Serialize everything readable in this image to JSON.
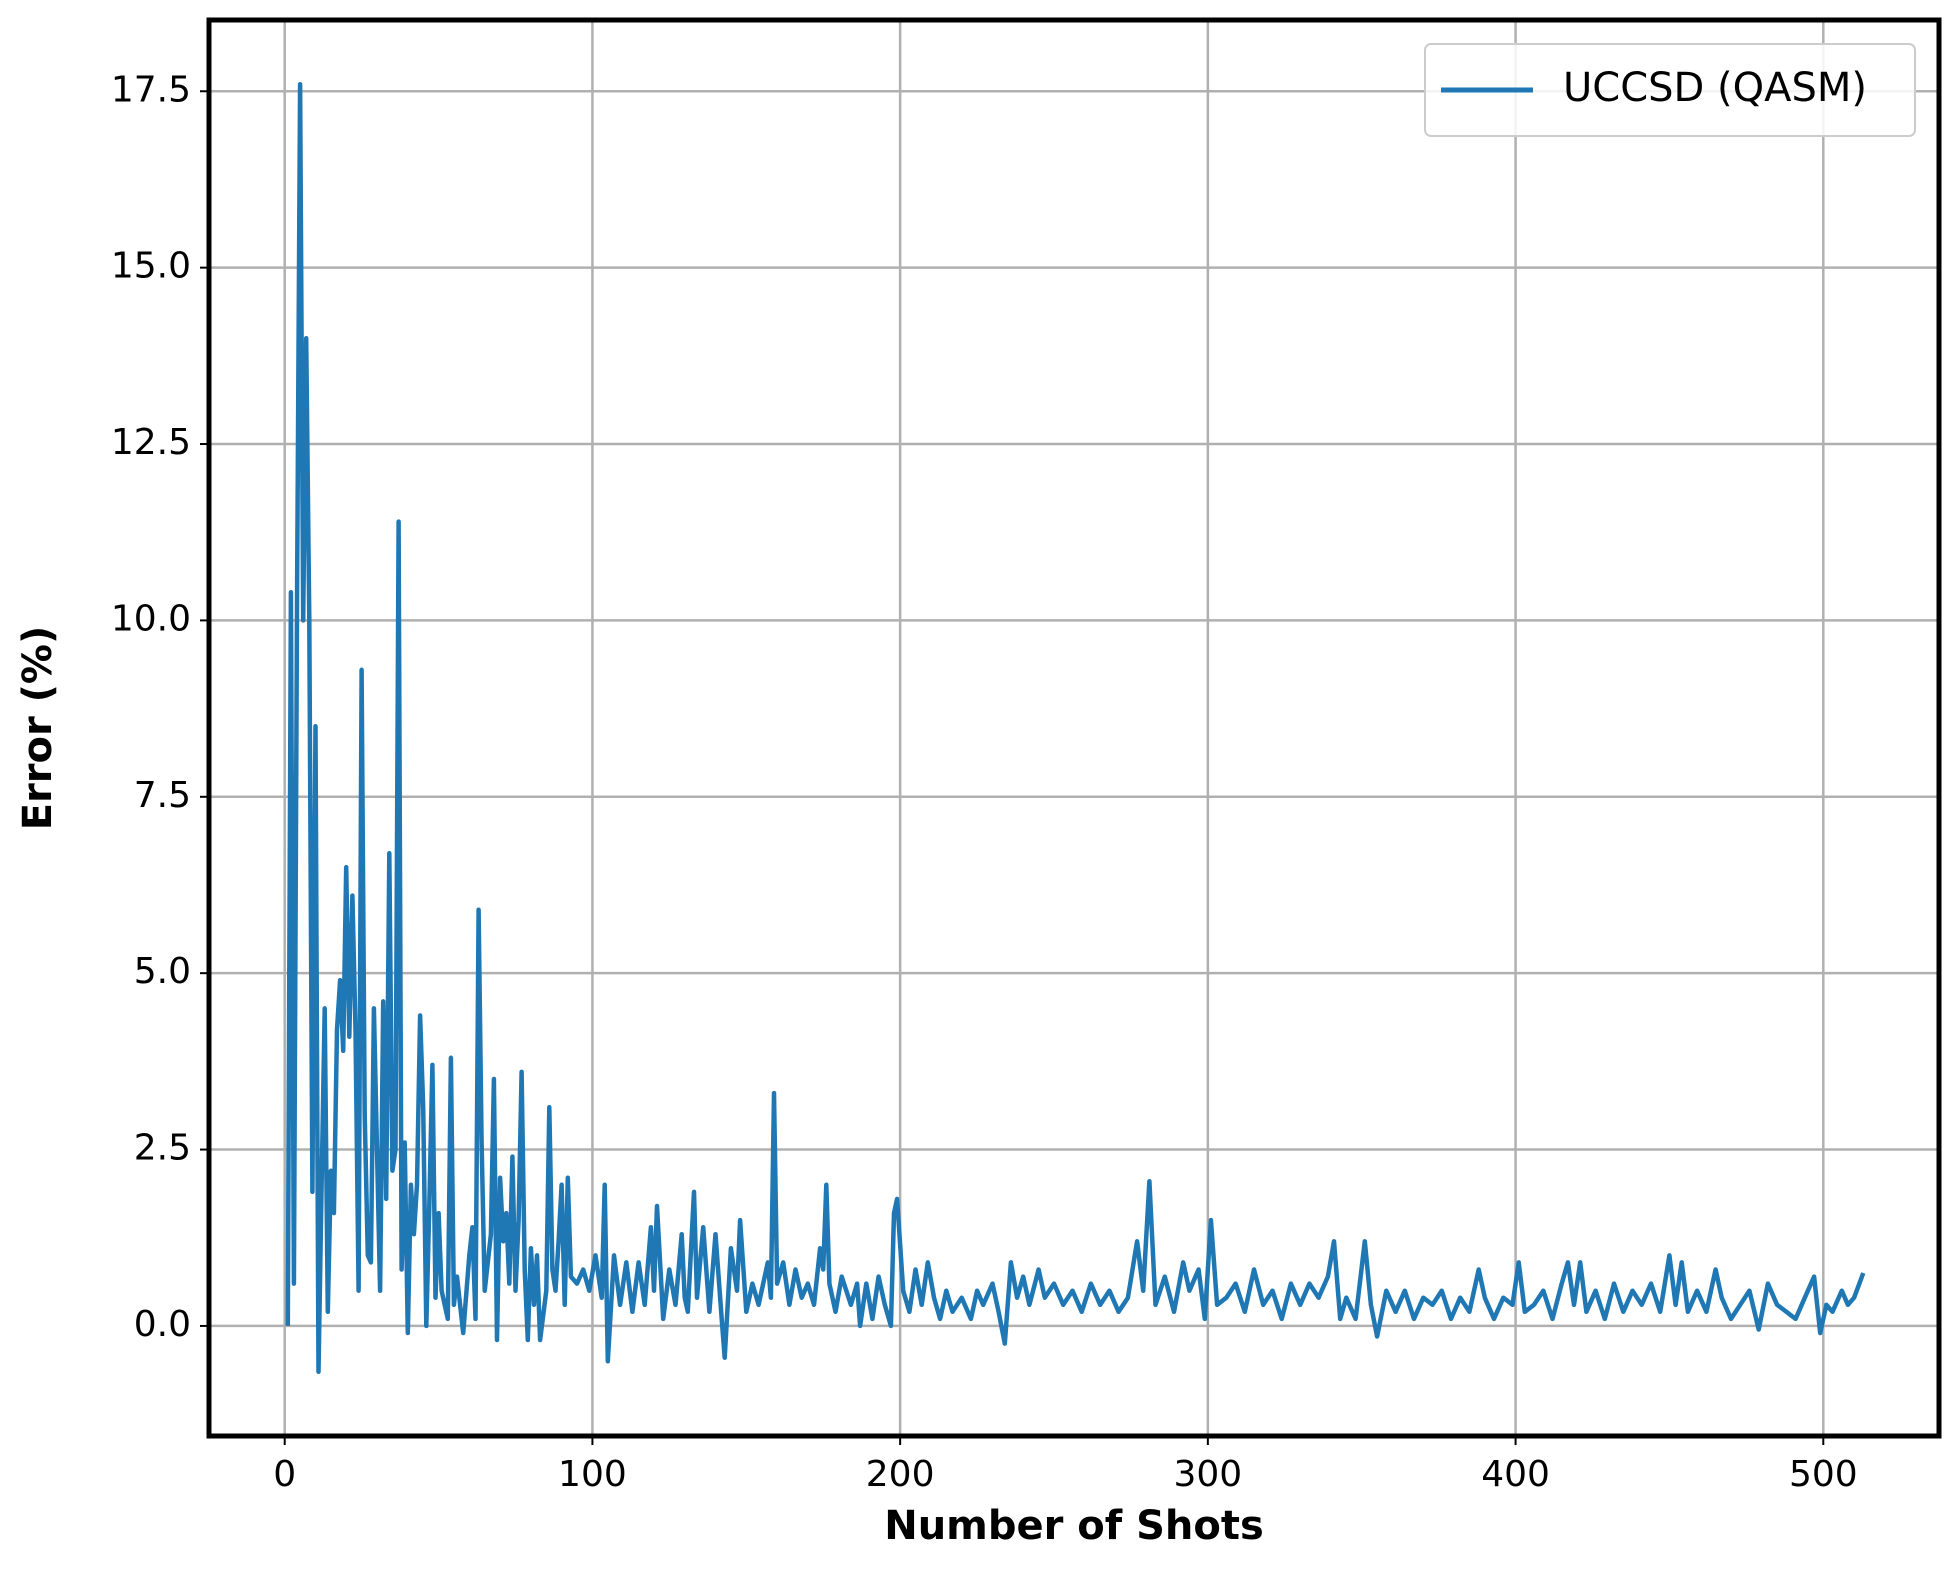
{
  "chart_data": {
    "type": "line",
    "xlabel": "Number of Shots",
    "ylabel": "Error (%)",
    "x": [
      1,
      2,
      3,
      4,
      5,
      6,
      7,
      8,
      9,
      10,
      11,
      12,
      13,
      14,
      15,
      16,
      17,
      18,
      19,
      20,
      21,
      22,
      23,
      24,
      25,
      26,
      27,
      28,
      29,
      30,
      31,
      32,
      33,
      34,
      35,
      36,
      37,
      38,
      39,
      40,
      41,
      42,
      43,
      44,
      45,
      46,
      47,
      48,
      49,
      50,
      51,
      53,
      54,
      55,
      56,
      58,
      60,
      61,
      62,
      63,
      64,
      65,
      67,
      68,
      69,
      70,
      71,
      72,
      73,
      74,
      75,
      76,
      77,
      78,
      79,
      80,
      81,
      82,
      83,
      85,
      86,
      87,
      88,
      89,
      90,
      91,
      92,
      93,
      95,
      97,
      99,
      101,
      103,
      104,
      105,
      107,
      109,
      111,
      113,
      115,
      117,
      119,
      120,
      121,
      123,
      125,
      127,
      129,
      130,
      131,
      133,
      134,
      136,
      138,
      140,
      142,
      143,
      145,
      147,
      148,
      150,
      152,
      154,
      157,
      158,
      159,
      160,
      162,
      164,
      166,
      168,
      170,
      172,
      174,
      175,
      176,
      177,
      179,
      181,
      184,
      186,
      187,
      189,
      191,
      193,
      195,
      197,
      198,
      199,
      201,
      203,
      205,
      207,
      209,
      211,
      213,
      215,
      217,
      220,
      223,
      225,
      227,
      230,
      232,
      234,
      236,
      238,
      240,
      242,
      245,
      247,
      250,
      253,
      256,
      259,
      262,
      265,
      268,
      271,
      274,
      277,
      279,
      281,
      283,
      286,
      289,
      292,
      294,
      297,
      299,
      301,
      303,
      306,
      309,
      312,
      315,
      318,
      321,
      324,
      327,
      330,
      333,
      336,
      339,
      341,
      343,
      345,
      348,
      351,
      353,
      355,
      358,
      361,
      364,
      367,
      370,
      373,
      376,
      379,
      382,
      385,
      388,
      390,
      393,
      396,
      399,
      401,
      403,
      406,
      409,
      412,
      415,
      417,
      419,
      421,
      423,
      426,
      429,
      432,
      435,
      438,
      441,
      444,
      447,
      450,
      452,
      454,
      456,
      459,
      462,
      465,
      467,
      470,
      473,
      476,
      479,
      482,
      485,
      488,
      491,
      494,
      497,
      499,
      501,
      503,
      506,
      508,
      510,
      513
    ],
    "series": [
      {
        "name": "UCCSD (QASM)",
        "color": "#1f77b4",
        "values": [
          0,
          10.4,
          0.6,
          10.2,
          17.6,
          10,
          14,
          10,
          1.9,
          8.5,
          -0.65,
          2,
          4.5,
          0.2,
          2.2,
          1.6,
          4.2,
          4.9,
          3.9,
          6.5,
          4.1,
          6.1,
          4.2,
          0.5,
          9.3,
          3,
          1,
          0.9,
          4.5,
          2.5,
          0.5,
          4.6,
          1.8,
          6.7,
          2.2,
          2.5,
          11.4,
          0.8,
          2.6,
          -0.1,
          2,
          1.3,
          2,
          4.4,
          3.1,
          0,
          1.7,
          3.7,
          0.4,
          1.6,
          0.5,
          0.1,
          3.8,
          0.3,
          0.7,
          -0.1,
          1,
          1.4,
          0.1,
          5.9,
          2.6,
          0.5,
          1.3,
          3.5,
          -0.2,
          2.1,
          1.2,
          1.6,
          0.6,
          2.4,
          0.5,
          1.5,
          3.6,
          0.8,
          -0.2,
          1.1,
          0.3,
          1,
          -0.2,
          0.5,
          3.1,
          0.8,
          0.5,
          1.2,
          2,
          0.3,
          2.1,
          0.7,
          0.6,
          0.8,
          0.5,
          1,
          0.4,
          2,
          -0.5,
          1,
          0.3,
          0.9,
          0.2,
          0.9,
          0.3,
          1.4,
          0.5,
          1.7,
          0.1,
          0.8,
          0.3,
          1.3,
          0.4,
          0.2,
          1.9,
          0.4,
          1.4,
          0.2,
          1.3,
          0.1,
          -0.45,
          1.1,
          0.5,
          1.5,
          0.2,
          0.6,
          0.3,
          0.9,
          0.4,
          3.3,
          0.6,
          0.9,
          0.3,
          0.8,
          0.4,
          0.6,
          0.3,
          1.1,
          0.8,
          2,
          0.6,
          0.2,
          0.7,
          0.3,
          0.6,
          0,
          0.6,
          0.1,
          0.7,
          0.3,
          0,
          1.6,
          1.8,
          0.5,
          0.2,
          0.8,
          0.3,
          0.9,
          0.4,
          0.1,
          0.5,
          0.2,
          0.4,
          0.1,
          0.5,
          0.3,
          0.6,
          0.2,
          -0.25,
          0.9,
          0.4,
          0.7,
          0.3,
          0.8,
          0.4,
          0.6,
          0.3,
          0.5,
          0.2,
          0.6,
          0.3,
          0.5,
          0.2,
          0.4,
          1.2,
          0.5,
          2.05,
          0.3,
          0.7,
          0.2,
          0.9,
          0.5,
          0.8,
          0.1,
          1.5,
          0.3,
          0.4,
          0.6,
          0.2,
          0.8,
          0.3,
          0.5,
          0.1,
          0.6,
          0.3,
          0.6,
          0.4,
          0.7,
          1.2,
          0.1,
          0.4,
          0.1,
          1.2,
          0.3,
          -0.15,
          0.5,
          0.2,
          0.5,
          0.1,
          0.4,
          0.3,
          0.5,
          0.1,
          0.4,
          0.2,
          0.8,
          0.4,
          0.1,
          0.4,
          0.3,
          0.9,
          0.2,
          0.3,
          0.5,
          0.1,
          0.6,
          0.9,
          0.3,
          0.9,
          0.2,
          0.5,
          0.1,
          0.6,
          0.2,
          0.5,
          0.3,
          0.6,
          0.2,
          1,
          0.3,
          0.9,
          0.2,
          0.5,
          0.2,
          0.8,
          0.4,
          0.1,
          0.3,
          0.5,
          -0.05,
          0.6,
          0.3,
          0.2,
          0.1,
          0.4,
          0.7,
          -0.1,
          0.3,
          0.2,
          0.5,
          0.3,
          0.4,
          0.75
        ]
      }
    ],
    "xlim": [
      -24.6,
      537.6
    ],
    "xticks": [
      0,
      100,
      200,
      300,
      400,
      500
    ],
    "ylim": [
      -1.56,
      18.51
    ],
    "yticks": [
      {
        "value": 0,
        "label": "0.0"
      },
      2.5,
      {
        "value": 5,
        "label": "5.0"
      },
      7.5,
      {
        "value": 10,
        "label": "10.0"
      },
      12.5,
      {
        "value": 15,
        "label": "15.0"
      },
      17.5
    ],
    "grid": true,
    "legend": "upper right"
  }
}
